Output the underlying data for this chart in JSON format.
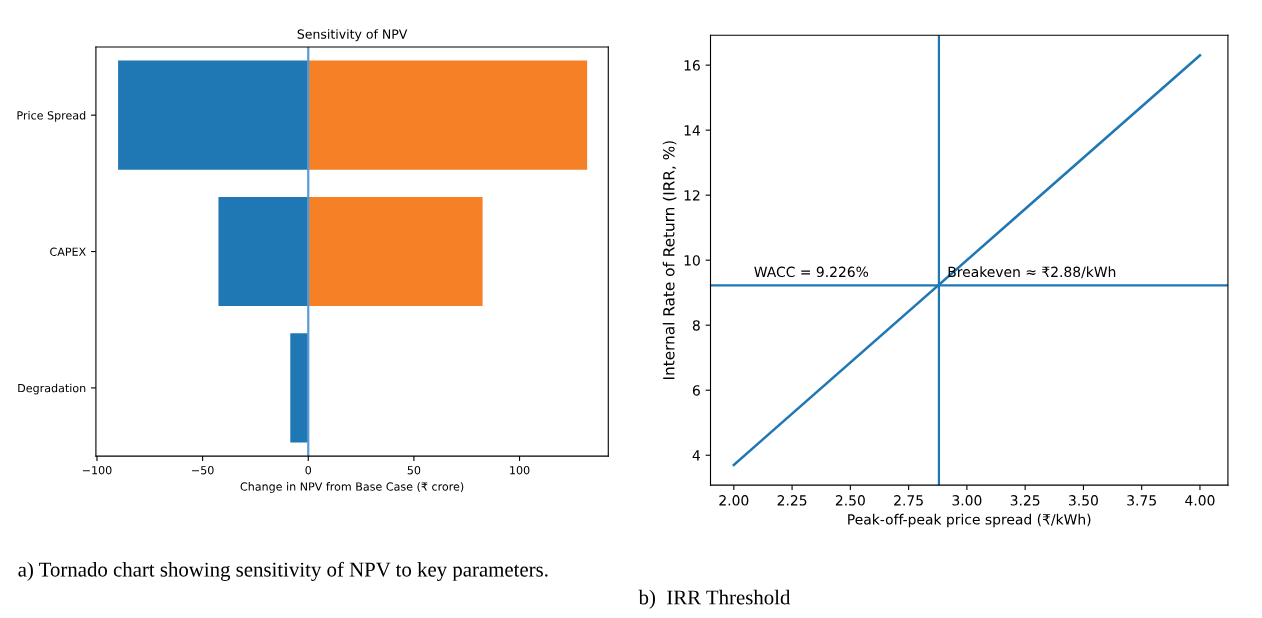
{
  "chart_data": [
    {
      "type": "bar",
      "orientation": "horizontal",
      "title": "Sensitivity of NPV",
      "xlabel": "Change in NPV from Base Case (₹ crore)",
      "categories": [
        "Price Spread",
        "CAPEX",
        "Degradation"
      ],
      "stacked": true,
      "series": [
        {
          "color": "#1f77b4",
          "values": [
            -90,
            -42.5,
            -8.5
          ]
        },
        {
          "color": "#f58025",
          "values": [
            132,
            82.5,
            null
          ]
        }
      ],
      "xlim": [
        -100.5,
        142
      ],
      "xticks": [
        {
          "value": -100,
          "label": "−100"
        },
        {
          "value": -50,
          "label": "−50"
        },
        0,
        50,
        100
      ],
      "ref_lines": [
        {
          "axis": "x",
          "value": 0,
          "color": "#5b9bd5"
        }
      ],
      "grid": false,
      "annotations": [
        "a) Tornado chart showing sensitivity of NPV to key parameters."
      ]
    },
    {
      "type": "line",
      "xlabel": "Peak-off-peak price spread (₹/kWh)",
      "ylabel": "Internal Rate of Return (IRR, %)",
      "x": [
        2.0,
        4.0
      ],
      "series": [
        {
          "color": "#1f77b4",
          "values": [
            3.7,
            16.3
          ]
        }
      ],
      "xlim": [
        1.9,
        4.12
      ],
      "xticks": [
        {
          "value": 2,
          "label": "2.00"
        },
        {
          "value": 2.25,
          "label": "2.25"
        },
        {
          "value": 2.5,
          "label": "2.50"
        },
        {
          "value": 2.75,
          "label": "2.75"
        },
        {
          "value": 3,
          "label": "3.00"
        },
        {
          "value": 3.25,
          "label": "3.25"
        },
        {
          "value": 3.5,
          "label": "3.50"
        },
        {
          "value": 3.75,
          "label": "3.75"
        },
        {
          "value": 4,
          "label": "4.00"
        }
      ],
      "ylim": [
        3.08,
        16.92
      ],
      "yticks": [
        4,
        6,
        8,
        10,
        12,
        14,
        16
      ],
      "ref_lines": [
        {
          "axis": "y",
          "value": 9.226,
          "color": "#1f77b4"
        },
        {
          "axis": "x",
          "value": 2.88,
          "color": "#1f77b4"
        }
      ],
      "grid": false,
      "annotations": [
        {
          "text": "WACC = 9.226%",
          "x": 2.05,
          "y": 9.226
        },
        {
          "text": "Breakeven ≈ ₹2.88/kWh",
          "x": 2.88,
          "y": 9.226
        },
        "b)  IRR Threshold"
      ]
    }
  ]
}
